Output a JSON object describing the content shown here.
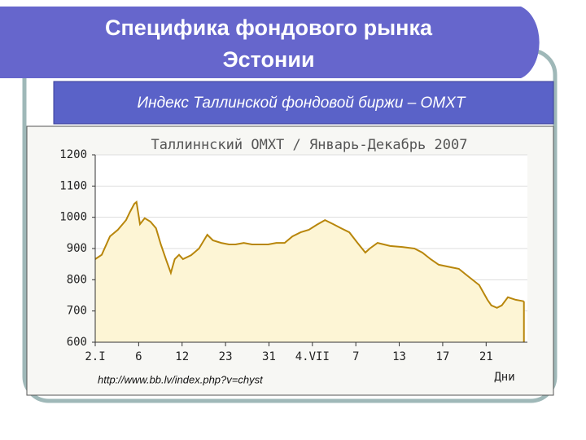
{
  "slide": {
    "title_lines": [
      "Специфика фондового рынка",
      "Эстонии"
    ],
    "subtitle": "Индекс Таллинской фондовой биржи – OMXT",
    "source": "http://www.bb.lv/index.php?v=chyst"
  },
  "chart_data": {
    "type": "area",
    "title": "Таллиннский OMXT / Январь-Декабрь 2007",
    "xlabel": "Дни",
    "line_color": "#b8860b",
    "fill_color": "#fdf5d5",
    "grid": true,
    "xlim": [
      0,
      9.95
    ],
    "ylim": [
      600,
      1200
    ],
    "yticks": [
      600,
      700,
      800,
      900,
      1000,
      1100,
      1200
    ],
    "xticks": [
      {
        "value": 0,
        "label": "2.I"
      },
      {
        "value": 1,
        "label": "6"
      },
      {
        "value": 2,
        "label": "12"
      },
      {
        "value": 3,
        "label": "23"
      },
      {
        "value": 4,
        "label": "31"
      },
      {
        "value": 5,
        "label": "4.VII"
      },
      {
        "value": 6,
        "label": "7"
      },
      {
        "value": 7,
        "label": "13"
      },
      {
        "value": 8,
        "label": "17"
      },
      {
        "value": 9,
        "label": "21"
      }
    ],
    "x": [
      0,
      0.15,
      0.34,
      0.52,
      0.71,
      0.8,
      0.9,
      0.95,
      1.03,
      1.14,
      1.27,
      1.4,
      1.51,
      1.64,
      1.74,
      1.83,
      1.93,
      2.02,
      2.21,
      2.39,
      2.58,
      2.71,
      2.9,
      3.08,
      3.23,
      3.42,
      3.61,
      3.79,
      3.98,
      4.17,
      4.36,
      4.54,
      4.73,
      4.92,
      5.1,
      5.29,
      5.48,
      5.66,
      5.85,
      6.04,
      6.22,
      6.32,
      6.5,
      6.79,
      7.07,
      7.35,
      7.53,
      7.72,
      7.91,
      8.19,
      8.37,
      8.56,
      8.84,
      9.03,
      9.12,
      9.25,
      9.36,
      9.5,
      9.68,
      9.87
    ],
    "values": [
      866,
      880,
      939,
      960,
      991,
      1017,
      1043,
      1049,
      978,
      997,
      986,
      965,
      913,
      861,
      822,
      866,
      880,
      866,
      879,
      900,
      944,
      926,
      918,
      913,
      913,
      918,
      913,
      913,
      913,
      918,
      918,
      939,
      952,
      960,
      976,
      991,
      978,
      965,
      952,
      918,
      887,
      900,
      918,
      908,
      905,
      900,
      887,
      866,
      848,
      840,
      835,
      814,
      783,
      736,
      718,
      710,
      718,
      744,
      736,
      731
    ]
  }
}
